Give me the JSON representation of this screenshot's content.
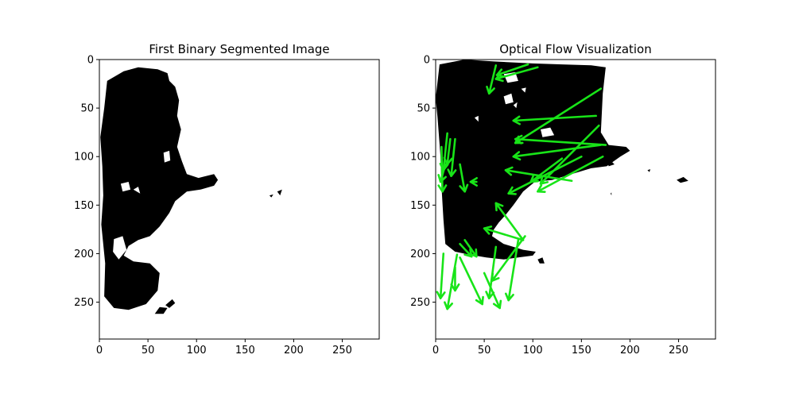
{
  "chart_data": [
    {
      "type": "image",
      "title": "First Binary Segmented Image",
      "xlim": [
        0,
        288
      ],
      "ylim": [
        288,
        0
      ],
      "xticks": [
        0,
        50,
        100,
        150,
        200,
        250
      ],
      "yticks": [
        0,
        50,
        100,
        150,
        200,
        250
      ],
      "colors": {
        "mask": "#000000",
        "background": "#ffffff"
      },
      "mask_regions": [
        [
          [
            25,
            12
          ],
          [
            40,
            8
          ],
          [
            60,
            10
          ],
          [
            70,
            14
          ],
          [
            72,
            22
          ],
          [
            78,
            28
          ],
          [
            82,
            42
          ],
          [
            80,
            58
          ],
          [
            84,
            72
          ],
          [
            80,
            90
          ],
          [
            85,
            105
          ],
          [
            90,
            118
          ],
          [
            102,
            122
          ],
          [
            118,
            118
          ],
          [
            122,
            124
          ],
          [
            118,
            130
          ],
          [
            104,
            134
          ],
          [
            90,
            136
          ],
          [
            78,
            146
          ],
          [
            72,
            158
          ],
          [
            62,
            172
          ],
          [
            52,
            182
          ],
          [
            40,
            186
          ],
          [
            30,
            192
          ],
          [
            25,
            202
          ],
          [
            35,
            208
          ],
          [
            52,
            210
          ],
          [
            62,
            220
          ],
          [
            60,
            238
          ],
          [
            48,
            252
          ],
          [
            30,
            258
          ],
          [
            15,
            256
          ],
          [
            5,
            244
          ],
          [
            6,
            210
          ],
          [
            2,
            170
          ],
          [
            4,
            140
          ],
          [
            3,
            110
          ],
          [
            1,
            80
          ],
          [
            5,
            50
          ],
          [
            8,
            22
          ]
        ],
        [
          [
            57,
            262
          ],
          [
            62,
            255
          ],
          [
            70,
            256
          ],
          [
            66,
            262
          ]
        ],
        [
          [
            68,
            253
          ],
          [
            75,
            247
          ],
          [
            78,
            251
          ],
          [
            72,
            256
          ]
        ],
        [
          [
            183,
            136
          ],
          [
            188,
            134
          ],
          [
            186,
            140
          ]
        ],
        [
          [
            175,
            140
          ],
          [
            179,
            139
          ],
          [
            177,
            142
          ]
        ]
      ],
      "holes": [
        [
          [
            22,
            128
          ],
          [
            30,
            126
          ],
          [
            32,
            134
          ],
          [
            24,
            136
          ]
        ],
        [
          [
            35,
            134
          ],
          [
            40,
            131
          ],
          [
            42,
            138
          ]
        ],
        [
          [
            15,
            185
          ],
          [
            24,
            182
          ],
          [
            28,
            196
          ],
          [
            20,
            206
          ],
          [
            14,
            198
          ]
        ],
        [
          [
            66,
            96
          ],
          [
            72,
            94
          ],
          [
            73,
            104
          ],
          [
            67,
            106
          ]
        ]
      ]
    },
    {
      "type": "image",
      "title": "Optical Flow Visualization",
      "xlim": [
        0,
        288
      ],
      "ylim": [
        288,
        0
      ],
      "xticks": [
        0,
        50,
        100,
        150,
        200,
        250
      ],
      "yticks": [
        0,
        50,
        100,
        150,
        200,
        250
      ],
      "colors": {
        "mask": "#000000",
        "background": "#ffffff",
        "arrows": "#18e418"
      },
      "mask_regions": [
        [
          [
            4,
            5
          ],
          [
            30,
            0
          ],
          [
            60,
            2
          ],
          [
            100,
            4
          ],
          [
            130,
            5
          ],
          [
            160,
            6
          ],
          [
            175,
            8
          ],
          [
            172,
            35
          ],
          [
            170,
            75
          ],
          [
            178,
            88
          ],
          [
            196,
            90
          ],
          [
            200,
            94
          ],
          [
            190,
            100
          ],
          [
            176,
            110
          ],
          [
            160,
            112
          ],
          [
            140,
            118
          ],
          [
            120,
            124
          ],
          [
            102,
            126
          ],
          [
            90,
            136
          ],
          [
            80,
            150
          ],
          [
            72,
            160
          ],
          [
            65,
            168
          ],
          [
            60,
            175
          ],
          [
            58,
            182
          ],
          [
            70,
            190
          ],
          [
            90,
            196
          ],
          [
            103,
            198
          ],
          [
            100,
            202
          ],
          [
            85,
            204
          ],
          [
            70,
            206
          ],
          [
            52,
            204
          ],
          [
            35,
            201
          ],
          [
            20,
            198
          ],
          [
            10,
            190
          ],
          [
            8,
            165
          ],
          [
            6,
            130
          ],
          [
            5,
            100
          ],
          [
            2,
            60
          ],
          [
            0,
            40
          ]
        ],
        [
          [
            105,
            206
          ],
          [
            110,
            204
          ],
          [
            112,
            210
          ],
          [
            107,
            210
          ]
        ],
        [
          [
            176,
            100
          ],
          [
            184,
            108
          ],
          [
            178,
            110
          ]
        ],
        [
          [
            248,
            124
          ],
          [
            255,
            121
          ],
          [
            260,
            125
          ],
          [
            252,
            127
          ]
        ],
        [
          [
            218,
            114
          ],
          [
            221,
            113
          ],
          [
            220,
            116
          ]
        ],
        [
          [
            180,
            138
          ],
          [
            181,
            137
          ],
          [
            181,
            140
          ]
        ]
      ],
      "holes": [
        [
          [
            70,
            15
          ],
          [
            82,
            13
          ],
          [
            85,
            22
          ],
          [
            74,
            24
          ]
        ],
        [
          [
            88,
            30
          ],
          [
            93,
            29
          ],
          [
            92,
            34
          ]
        ],
        [
          [
            70,
            38
          ],
          [
            78,
            35
          ],
          [
            80,
            44
          ],
          [
            72,
            46
          ]
        ],
        [
          [
            80,
            47
          ],
          [
            84,
            44
          ],
          [
            83,
            50
          ]
        ],
        [
          [
            108,
            72
          ],
          [
            118,
            70
          ],
          [
            122,
            78
          ],
          [
            110,
            80
          ]
        ],
        [
          [
            40,
            60
          ],
          [
            44,
            58
          ],
          [
            44,
            64
          ]
        ]
      ],
      "flow_vectors": [
        {
          "x0": 105,
          "y0": 8,
          "x1": 62,
          "y1": 20
        },
        {
          "x0": 95,
          "y0": 5,
          "x1": 63,
          "y1": 16
        },
        {
          "x0": 62,
          "y0": 6,
          "x1": 55,
          "y1": 35
        },
        {
          "x0": 165,
          "y0": 58,
          "x1": 80,
          "y1": 63
        },
        {
          "x0": 170,
          "y0": 30,
          "x1": 82,
          "y1": 86
        },
        {
          "x0": 175,
          "y0": 88,
          "x1": 82,
          "y1": 82
        },
        {
          "x0": 170,
          "y0": 88,
          "x1": 80,
          "y1": 100
        },
        {
          "x0": 168,
          "y0": 68,
          "x1": 108,
          "y1": 128
        },
        {
          "x0": 172,
          "y0": 100,
          "x1": 105,
          "y1": 136
        },
        {
          "x0": 150,
          "y0": 100,
          "x1": 75,
          "y1": 138
        },
        {
          "x0": 140,
          "y0": 125,
          "x1": 72,
          "y1": 114
        },
        {
          "x0": 130,
          "y0": 102,
          "x1": 98,
          "y1": 126
        },
        {
          "x0": 12,
          "y0": 76,
          "x1": 8,
          "y1": 114
        },
        {
          "x0": 6,
          "y0": 90,
          "x1": 7,
          "y1": 136
        },
        {
          "x0": 15,
          "y0": 82,
          "x1": 12,
          "y1": 108
        },
        {
          "x0": 20,
          "y0": 82,
          "x1": 16,
          "y1": 120
        },
        {
          "x0": 25,
          "y0": 108,
          "x1": 30,
          "y1": 136
        },
        {
          "x0": 10,
          "y0": 108,
          "x1": 5,
          "y1": 126
        },
        {
          "x0": 42,
          "y0": 126,
          "x1": 36,
          "y1": 126
        },
        {
          "x0": 90,
          "y0": 186,
          "x1": 62,
          "y1": 148
        },
        {
          "x0": 90,
          "y0": 186,
          "x1": 50,
          "y1": 174
        },
        {
          "x0": 92,
          "y0": 182,
          "x1": 58,
          "y1": 228
        },
        {
          "x0": 85,
          "y0": 186,
          "x1": 75,
          "y1": 248
        },
        {
          "x0": 25,
          "y0": 190,
          "x1": 37,
          "y1": 203
        },
        {
          "x0": 30,
          "y0": 186,
          "x1": 42,
          "y1": 203
        },
        {
          "x0": 25,
          "y0": 204,
          "x1": 48,
          "y1": 252
        },
        {
          "x0": 8,
          "y0": 200,
          "x1": 5,
          "y1": 246
        },
        {
          "x0": 22,
          "y0": 201,
          "x1": 12,
          "y1": 257
        },
        {
          "x0": 20,
          "y0": 214,
          "x1": 20,
          "y1": 238
        },
        {
          "x0": 62,
          "y0": 193,
          "x1": 55,
          "y1": 246
        },
        {
          "x0": 50,
          "y0": 220,
          "x1": 66,
          "y1": 256
        }
      ]
    }
  ]
}
